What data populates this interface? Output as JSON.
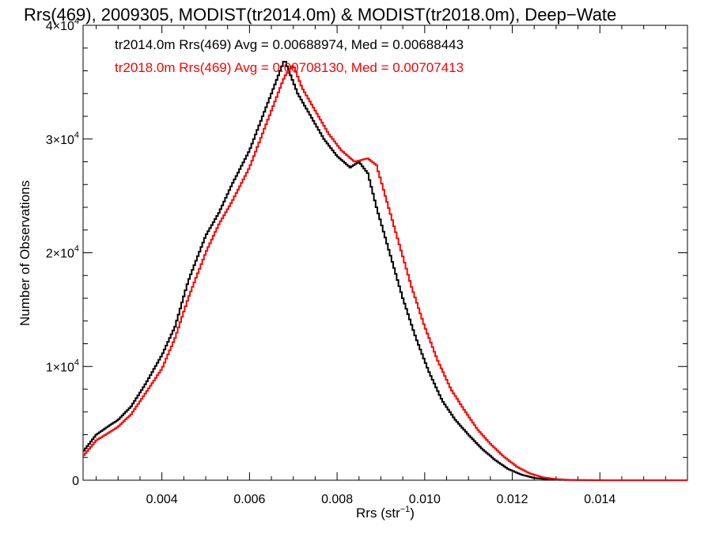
{
  "chart_data": {
    "type": "line",
    "title": "Rrs(469), 2009305, MODIST(tr2014.0m) & MODIST(tr2018.0m), Deep−Wate",
    "xlabel": "Rrs (str",
    "xlabel_sup": "−1",
    "xlabel_close": ")",
    "ylabel": "Number of Observations",
    "xlim": [
      0.0022,
      0.016
    ],
    "ylim": [
      0,
      40000
    ],
    "xticks": [
      {
        "value": 0.004,
        "label": "0.004"
      },
      {
        "value": 0.006,
        "label": "0.006"
      },
      {
        "value": 0.008,
        "label": "0.008"
      },
      {
        "value": 0.01,
        "label": "0.010"
      },
      {
        "value": 0.012,
        "label": "0.012"
      },
      {
        "value": 0.014,
        "label": "0.014"
      }
    ],
    "yticks": [
      {
        "value": 0,
        "base": "0",
        "exp": ""
      },
      {
        "value": 10000,
        "base": "1×10",
        "exp": "4"
      },
      {
        "value": 20000,
        "base": "2×10",
        "exp": "4"
      },
      {
        "value": 30000,
        "base": "3×10",
        "exp": "4"
      },
      {
        "value": 40000,
        "base": "4×10",
        "exp": "4"
      }
    ],
    "grid": false,
    "legend_position": "top-left",
    "series": [
      {
        "name": "tr2014.0m Rrs(469) Avg = 0.00688974, Med = 0.00688443",
        "color": "#000000",
        "x": [
          0.0022,
          0.0025,
          0.0028,
          0.003,
          0.0033,
          0.0036,
          0.004,
          0.0043,
          0.0046,
          0.005,
          0.0053,
          0.0056,
          0.006,
          0.0063,
          0.0066,
          0.0068,
          0.0069,
          0.0071,
          0.0074,
          0.0077,
          0.008,
          0.0083,
          0.0085,
          0.0087,
          0.0089,
          0.0092,
          0.0095,
          0.0098,
          0.0101,
          0.0104,
          0.0107,
          0.011,
          0.0113,
          0.0116,
          0.0119,
          0.0122,
          0.0125,
          0.0128,
          0.0131,
          0.0135,
          0.014,
          0.015,
          0.016
        ],
        "y": [
          2500,
          4000,
          4800,
          5300,
          6500,
          8300,
          11000,
          13500,
          17500,
          21500,
          23500,
          26000,
          29000,
          32000,
          35000,
          37000,
          36000,
          34000,
          32000,
          30000,
          28500,
          27500,
          28000,
          27000,
          24000,
          20000,
          16000,
          12500,
          9500,
          7000,
          5300,
          4000,
          2800,
          1800,
          1000,
          500,
          200,
          80,
          30,
          10,
          0,
          0,
          0
        ]
      },
      {
        "name": "tr2018.0m Rrs(469) Avg = 0.00708130, Med = 0.00707413",
        "color": "#ff0000",
        "x": [
          0.0022,
          0.0025,
          0.0028,
          0.003,
          0.0033,
          0.0036,
          0.004,
          0.0043,
          0.0046,
          0.005,
          0.0053,
          0.0056,
          0.006,
          0.0063,
          0.0066,
          0.0068,
          0.007,
          0.0072,
          0.0075,
          0.0078,
          0.0081,
          0.0084,
          0.0087,
          0.0089,
          0.0091,
          0.0094,
          0.0097,
          0.01,
          0.0103,
          0.0106,
          0.0109,
          0.0112,
          0.0115,
          0.0118,
          0.0121,
          0.0124,
          0.0127,
          0.013,
          0.0133,
          0.0137,
          0.0142,
          0.015,
          0.016
        ],
        "y": [
          2100,
          3500,
          4200,
          4700,
          5800,
          7500,
          9800,
          12500,
          16000,
          20000,
          22500,
          24500,
          27500,
          30500,
          33500,
          35500,
          36500,
          34500,
          32500,
          30500,
          29000,
          28000,
          28300,
          27700,
          25000,
          21000,
          17000,
          13500,
          10500,
          8000,
          6200,
          4500,
          3200,
          2100,
          1200,
          600,
          250,
          100,
          30,
          10,
          0,
          0,
          0
        ]
      }
    ]
  }
}
